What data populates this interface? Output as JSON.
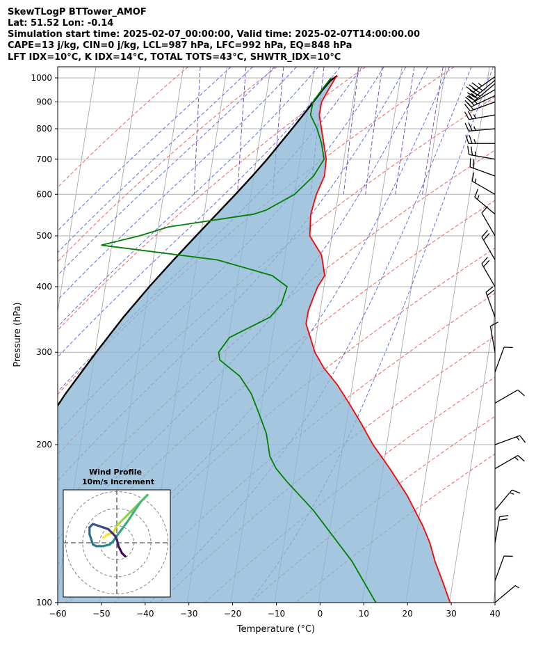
{
  "chart_data": {
    "type": "skewt-logp",
    "title_lines": [
      "SkewTLogP BTTower_AMOF",
      "Lat: 51.52   Lon: -0.14",
      "Simulation start time: 2025-02-07_00:00:00, Valid time: 2025-02-07T14:00:00.00",
      "CAPE=13 j/kg, CIN=0 j/kg, LCL=987 hPa, LFC=992 hPa, EQ=848 hPa",
      "LFT IDX=10°C, K IDX=14°C, TOTAL TOTS=43°C, SHWTR_IDX=10°C"
    ],
    "xlabel": "Temperature (°C)",
    "ylabel": "Pressure (hPa)",
    "xlim": [
      -60,
      40
    ],
    "ylim": [
      1050,
      100
    ],
    "x_ticks": [
      -60,
      -50,
      -40,
      -30,
      -20,
      -10,
      0,
      10,
      20,
      30,
      40
    ],
    "y_ticks": [
      100,
      200,
      300,
      400,
      500,
      600,
      700,
      800,
      900,
      1000
    ],
    "temperature_profile": [
      [
        1010,
        4
      ],
      [
        1000,
        3.5
      ],
      [
        950,
        1.5
      ],
      [
        900,
        -0.5
      ],
      [
        850,
        -1.5
      ],
      [
        800,
        -1.5
      ],
      [
        750,
        -1.5
      ],
      [
        700,
        -1.5
      ],
      [
        650,
        -2.5
      ],
      [
        600,
        -5
      ],
      [
        550,
        -7
      ],
      [
        500,
        -8
      ],
      [
        460,
        -6
      ],
      [
        440,
        -6
      ],
      [
        420,
        -6
      ],
      [
        400,
        -8
      ],
      [
        380,
        -9.5
      ],
      [
        360,
        -11
      ],
      [
        340,
        -12
      ],
      [
        320,
        -11.5
      ],
      [
        300,
        -11
      ],
      [
        280,
        -9.5
      ],
      [
        260,
        -7
      ],
      [
        240,
        -5
      ],
      [
        220,
        -3
      ],
      [
        200,
        -1
      ],
      [
        180,
        2
      ],
      [
        160,
        5
      ],
      [
        140,
        7.5
      ],
      [
        130,
        8.5
      ],
      [
        120,
        9
      ],
      [
        110,
        10
      ],
      [
        100,
        11
      ]
    ],
    "dewpoint_profile": [
      [
        1000,
        2.5
      ],
      [
        950,
        0
      ],
      [
        900,
        -2.5
      ],
      [
        850,
        -3.5
      ],
      [
        800,
        -2.5
      ],
      [
        750,
        -2
      ],
      [
        700,
        -2
      ],
      [
        650,
        -5
      ],
      [
        600,
        -10
      ],
      [
        560,
        -17
      ],
      [
        550,
        -20
      ],
      [
        520,
        -40
      ],
      [
        500,
        -47
      ],
      [
        480,
        -56
      ],
      [
        450,
        -30
      ],
      [
        420,
        -18
      ],
      [
        400,
        -15
      ],
      [
        370,
        -17
      ],
      [
        350,
        -20
      ],
      [
        320,
        -30
      ],
      [
        300,
        -33
      ],
      [
        290,
        -33
      ],
      [
        270,
        -29
      ],
      [
        250,
        -27
      ],
      [
        230,
        -26
      ],
      [
        210,
        -25
      ],
      [
        200,
        -25
      ],
      [
        190,
        -25
      ],
      [
        180,
        -24
      ],
      [
        170,
        -22
      ],
      [
        150,
        -17
      ],
      [
        120,
        -10
      ],
      [
        100,
        -6
      ]
    ],
    "parcel_profile": [
      [
        1010,
        4
      ],
      [
        987,
        2.2
      ],
      [
        950,
        0.2
      ],
      [
        900,
        -2.4
      ],
      [
        850,
        -5.2
      ],
      [
        800,
        -8.2
      ],
      [
        750,
        -11.5
      ],
      [
        700,
        -15
      ],
      [
        650,
        -19
      ],
      [
        600,
        -23.5
      ],
      [
        550,
        -28.5
      ],
      [
        500,
        -34
      ],
      [
        450,
        -40
      ],
      [
        400,
        -46.5
      ],
      [
        350,
        -53.5
      ],
      [
        300,
        -61
      ],
      [
        250,
        -69.5
      ],
      [
        200,
        -79
      ],
      [
        150,
        -90
      ],
      [
        100,
        -103
      ]
    ],
    "wind_barbs": [
      {
        "p": 1005,
        "speed_kt": 35,
        "dir": 235
      },
      {
        "p": 990,
        "speed_kt": 35,
        "dir": 230
      },
      {
        "p": 975,
        "speed_kt": 30,
        "dir": 230
      },
      {
        "p": 950,
        "speed_kt": 30,
        "dir": 240
      },
      {
        "p": 925,
        "speed_kt": 25,
        "dir": 245
      },
      {
        "p": 900,
        "speed_kt": 20,
        "dir": 250
      },
      {
        "p": 850,
        "speed_kt": 25,
        "dir": 260
      },
      {
        "p": 800,
        "speed_kt": 25,
        "dir": 265
      },
      {
        "p": 750,
        "speed_kt": 25,
        "dir": 270
      },
      {
        "p": 700,
        "speed_kt": 25,
        "dir": 280
      },
      {
        "p": 650,
        "speed_kt": 20,
        "dir": 290
      },
      {
        "p": 600,
        "speed_kt": 15,
        "dir": 300
      },
      {
        "p": 550,
        "speed_kt": 15,
        "dir": 310
      },
      {
        "p": 500,
        "speed_kt": 10,
        "dir": 330
      },
      {
        "p": 450,
        "speed_kt": 20,
        "dir": 330
      },
      {
        "p": 400,
        "speed_kt": 20,
        "dir": 330
      },
      {
        "p": 350,
        "speed_kt": 20,
        "dir": 340
      },
      {
        "p": 300,
        "speed_kt": 10,
        "dir": 350
      },
      {
        "p": 275,
        "speed_kt": 10,
        "dir": 20
      },
      {
        "p": 240,
        "speed_kt": 10,
        "dir": 60
      },
      {
        "p": 200,
        "speed_kt": 15,
        "dir": 70
      },
      {
        "p": 180,
        "speed_kt": 15,
        "dir": 60
      },
      {
        "p": 150,
        "speed_kt": 15,
        "dir": 40
      },
      {
        "p": 130,
        "speed_kt": 20,
        "dir": 10
      },
      {
        "p": 110,
        "speed_kt": 10,
        "dir": 20
      },
      {
        "p": 100,
        "speed_kt": 5,
        "dir": 50
      }
    ],
    "hodograph": {
      "title": "Wind Profile",
      "subtitle": "10m/s increment",
      "ring_increment_ms": 10,
      "rings": [
        10,
        20,
        30
      ],
      "points": [
        [
          -8,
          3
        ],
        [
          -5,
          5
        ],
        [
          -2,
          6
        ],
        [
          -1,
          8
        ],
        [
          0,
          10
        ],
        [
          2,
          12
        ],
        [
          5,
          15
        ],
        [
          8,
          18
        ],
        [
          12,
          22
        ],
        [
          16,
          26
        ],
        [
          18,
          28
        ],
        [
          14,
          24
        ],
        [
          10,
          18
        ],
        [
          6,
          12
        ],
        [
          3,
          8
        ],
        [
          0,
          4
        ],
        [
          -2,
          1
        ],
        [
          -4,
          -1
        ],
        [
          -8,
          -2
        ],
        [
          -12,
          -2
        ],
        [
          -14,
          -1
        ],
        [
          -15,
          2
        ],
        [
          -16,
          5
        ],
        [
          -16,
          9
        ],
        [
          -14,
          11
        ],
        [
          -11,
          10
        ],
        [
          -8,
          9
        ],
        [
          -5,
          8
        ],
        [
          -3,
          6
        ],
        [
          -1,
          4
        ],
        [
          0,
          2
        ],
        [
          1,
          -2
        ],
        [
          2,
          -4
        ],
        [
          3,
          -6
        ],
        [
          5,
          -8
        ]
      ]
    }
  }
}
